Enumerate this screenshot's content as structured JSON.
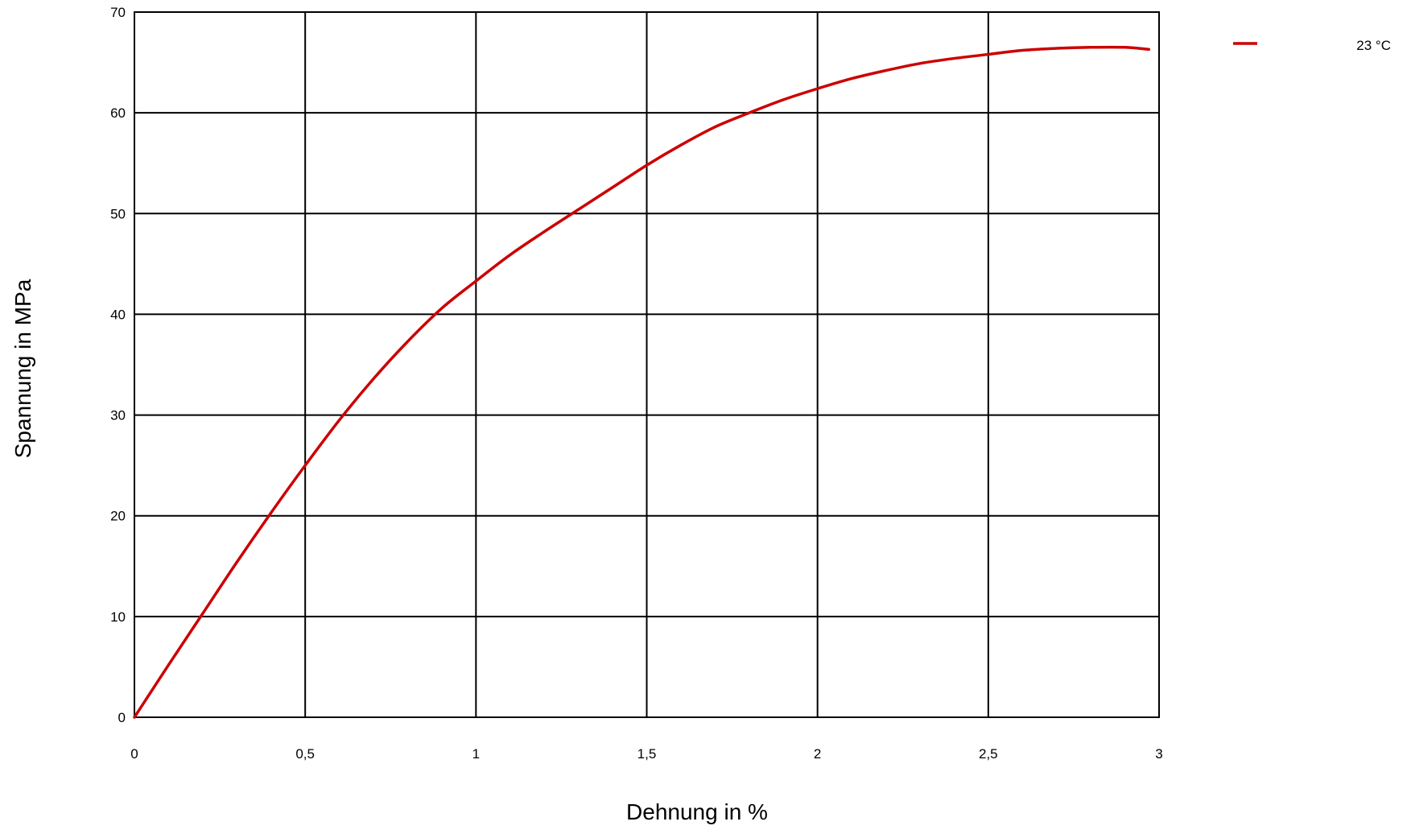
{
  "chart_data": {
    "type": "line",
    "title": "",
    "xlabel": "Dehnung in %",
    "ylabel": "Spannung in MPa",
    "xlim": [
      0,
      3
    ],
    "ylim": [
      0,
      70
    ],
    "x_ticks": [
      0,
      0.5,
      1,
      1.5,
      2,
      2.5,
      3
    ],
    "x_tick_labels": [
      "0",
      "0,5",
      "1",
      "1,5",
      "2",
      "2,5",
      "3"
    ],
    "y_ticks": [
      0,
      10,
      20,
      30,
      40,
      50,
      60,
      70
    ],
    "y_tick_labels": [
      "0",
      "10",
      "20",
      "30",
      "40",
      "50",
      "60",
      "70"
    ],
    "grid": true,
    "legend_position": "top-right",
    "series": [
      {
        "name": "23 °C",
        "color": "#cc0000",
        "x": [
          0,
          0.1,
          0.2,
          0.3,
          0.4,
          0.5,
          0.6,
          0.7,
          0.8,
          0.9,
          1.0,
          1.1,
          1.2,
          1.3,
          1.4,
          1.5,
          1.6,
          1.7,
          1.8,
          1.9,
          2.0,
          2.1,
          2.2,
          2.3,
          2.4,
          2.5,
          2.6,
          2.7,
          2.8,
          2.9,
          2.97
        ],
        "y": [
          0,
          5.2,
          10.3,
          15.4,
          20.3,
          25.0,
          29.5,
          33.6,
          37.3,
          40.6,
          43.3,
          45.9,
          48.2,
          50.4,
          52.6,
          54.8,
          56.8,
          58.6,
          60.0,
          61.3,
          62.4,
          63.4,
          64.2,
          64.9,
          65.4,
          65.8,
          66.2,
          66.4,
          66.5,
          66.5,
          66.3
        ]
      }
    ]
  }
}
